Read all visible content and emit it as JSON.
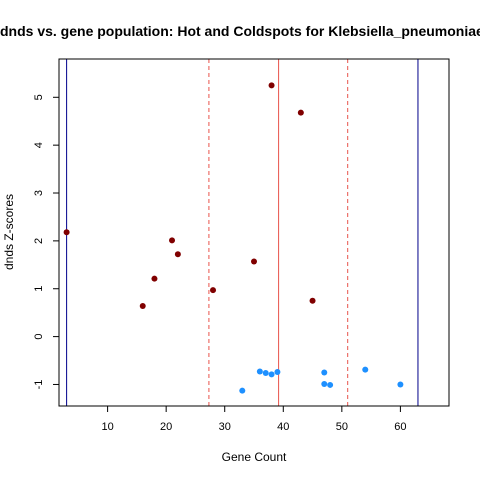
{
  "chart_data": {
    "type": "scatter",
    "title": "dnds vs. gene population: Hot and Coldspots for Klebsiella_pneumoniae",
    "xlabel": "Gene Count",
    "ylabel": "dnds Z-scores",
    "xlim": [
      1.7,
      68.3
    ],
    "ylim": [
      -1.45,
      5.8
    ],
    "xticks": [
      10,
      20,
      30,
      40,
      50,
      60
    ],
    "yticks": [
      -1,
      0,
      1,
      2,
      3,
      4,
      5
    ],
    "grid": false,
    "series": [
      {
        "color": "#800000",
        "points": [
          {
            "x": 3,
            "y": 2.18
          },
          {
            "x": 16,
            "y": 0.64
          },
          {
            "x": 18,
            "y": 1.21
          },
          {
            "x": 21,
            "y": 2.01
          },
          {
            "x": 22,
            "y": 1.72
          },
          {
            "x": 28,
            "y": 0.97
          },
          {
            "x": 35,
            "y": 1.57
          },
          {
            "x": 38,
            "y": 5.25
          },
          {
            "x": 43,
            "y": 4.68
          },
          {
            "x": 45,
            "y": 0.75
          }
        ]
      },
      {
        "color": "#1e90ff",
        "points": [
          {
            "x": 33,
            "y": -1.13
          },
          {
            "x": 36,
            "y": -0.73
          },
          {
            "x": 37,
            "y": -0.76
          },
          {
            "x": 38,
            "y": -0.79
          },
          {
            "x": 39,
            "y": -0.74
          },
          {
            "x": 47,
            "y": -0.75
          },
          {
            "x": 47,
            "y": -0.99
          },
          {
            "x": 48,
            "y": -1.01
          },
          {
            "x": 54,
            "y": -0.69
          },
          {
            "x": 60,
            "y": -1.0
          }
        ]
      }
    ],
    "reference_lines": [
      {
        "x": 3,
        "color": "#00008b",
        "style": "solid"
      },
      {
        "x": 27.3,
        "color": "#e8534b",
        "style": "dashed"
      },
      {
        "x": 39.2,
        "color": "#e8534b",
        "style": "solid"
      },
      {
        "x": 51.0,
        "color": "#e8534b",
        "style": "dashed"
      },
      {
        "x": 63.0,
        "color": "#00008b",
        "style": "solid"
      }
    ]
  }
}
